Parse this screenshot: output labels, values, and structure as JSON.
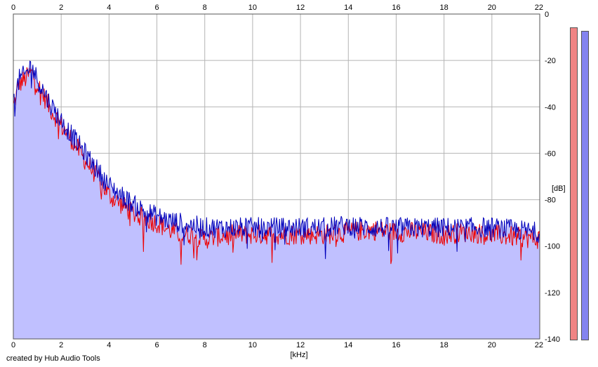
{
  "credit": "created by Hub Audio Tools",
  "colors": {
    "fill": "#c0c0ff",
    "left_channel": "#ee0000",
    "right_channel": "#0000bb",
    "meter_left": "#f08484",
    "meter_right": "#8484f0",
    "grid": "#b4b4b4"
  },
  "meters": {
    "left_level_fraction": 0.99,
    "right_level_fraction": 0.98
  },
  "chart_data": {
    "type": "area",
    "title": "",
    "xlabel": "[kHz]",
    "ylabel": "[dB]",
    "xlim": [
      0,
      22
    ],
    "ylim": [
      -140,
      0
    ],
    "x_ticks": [
      "0",
      "2",
      "4",
      "6",
      "8",
      "10",
      "12",
      "14",
      "16",
      "18",
      "20",
      "22"
    ],
    "y_ticks": [
      "0",
      "-20",
      "-40",
      "-60",
      "-80",
      "-100",
      "-120",
      "-140"
    ],
    "x_ticks_top": true,
    "grid": true,
    "series": [
      {
        "channel": "left",
        "color": "#ee0000",
        "x": [
          0,
          0.25,
          0.5,
          0.75,
          1,
          1.25,
          1.5,
          1.75,
          2,
          2.5,
          3,
          3.5,
          4,
          4.5,
          5,
          5.5,
          6,
          6.5,
          7,
          7.5,
          8,
          8.5,
          9,
          10,
          11,
          12,
          13,
          14,
          15,
          16,
          17,
          18,
          19,
          20,
          21,
          22
        ],
        "values": [
          -40,
          -30,
          -28,
          -25,
          -30,
          -35,
          -40,
          -44,
          -48,
          -55,
          -63,
          -70,
          -78,
          -82,
          -86,
          -88,
          -90,
          -93,
          -95,
          -95,
          -97,
          -96,
          -95,
          -95,
          -95,
          -95,
          -95,
          -94,
          -93,
          -94,
          -94,
          -95,
          -94,
          -95,
          -96,
          -97
        ]
      },
      {
        "channel": "right",
        "color": "#0000bb",
        "x": [
          0,
          0.25,
          0.5,
          0.75,
          1,
          1.25,
          1.5,
          1.75,
          2,
          2.5,
          3,
          3.5,
          4,
          4.5,
          5,
          5.5,
          6,
          6.5,
          7,
          7.5,
          8,
          8.5,
          9,
          10,
          11,
          12,
          13,
          14,
          15,
          16,
          17,
          18,
          19,
          20,
          21,
          22
        ],
        "values": [
          -38,
          -28,
          -26,
          -22,
          -28,
          -33,
          -38,
          -42,
          -46,
          -53,
          -60,
          -67,
          -74,
          -78,
          -82,
          -85,
          -87,
          -89,
          -90,
          -91,
          -92,
          -92,
          -92,
          -92,
          -92,
          -92,
          -92,
          -91,
          -92,
          -92,
          -92,
          -92,
          -92,
          -92,
          -93,
          -94
        ]
      }
    ]
  }
}
